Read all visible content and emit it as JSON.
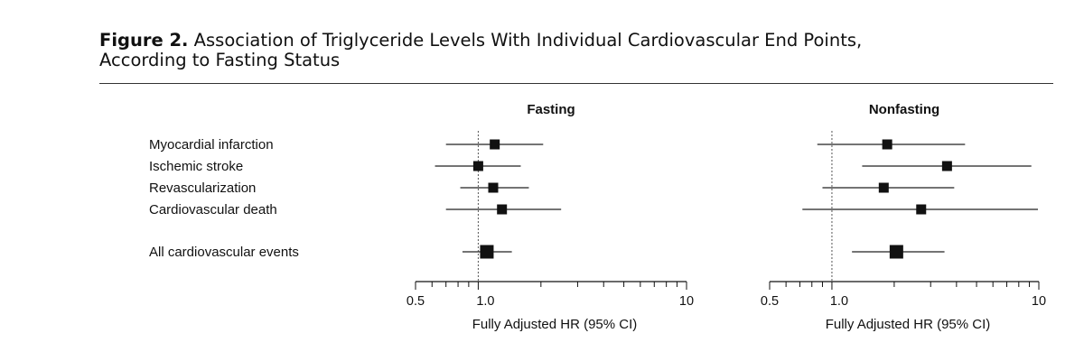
{
  "figure": {
    "label": "Figure 2.",
    "title_line1": "Association of Triglyceride Levels With Individual Cardiovascular End Points,",
    "title_line2": "According to Fasting Status"
  },
  "chart_data": [
    {
      "type": "forest",
      "title": "Fasting",
      "categories": [
        "Myocardial infarction",
        "Ischemic stroke",
        "Revascularization",
        "Cardiovascular death",
        "All cardiovascular events"
      ],
      "estimates": [
        1.2,
        1.0,
        1.18,
        1.3,
        1.1
      ],
      "ci_low": [
        0.7,
        0.62,
        0.82,
        0.7,
        0.84
      ],
      "ci_high": [
        2.05,
        1.6,
        1.75,
        2.5,
        1.45
      ],
      "xlabel": "Fully Adjusted HR (95% CI)",
      "xscale": "log",
      "xlim": [
        0.5,
        10
      ],
      "xticks": [
        "0.5",
        "1.0",
        "10"
      ],
      "reference_line": 1.0
    },
    {
      "type": "forest",
      "title": "Nonfasting",
      "categories": [
        "Myocardial infarction",
        "Ischemic stroke",
        "Revascularization",
        "Cardiovascular death",
        "All cardiovascular events"
      ],
      "estimates": [
        1.85,
        3.6,
        1.78,
        2.7,
        2.05
      ],
      "ci_low": [
        0.85,
        1.4,
        0.9,
        0.72,
        1.25
      ],
      "ci_high": [
        4.4,
        9.2,
        3.9,
        9.9,
        3.5
      ],
      "xlabel": "Fully Adjusted HR (95% CI)",
      "xscale": "log",
      "xlim": [
        0.5,
        10
      ],
      "xticks": [
        "0.5",
        "1.0",
        "10"
      ],
      "reference_line": 1.0
    }
  ]
}
